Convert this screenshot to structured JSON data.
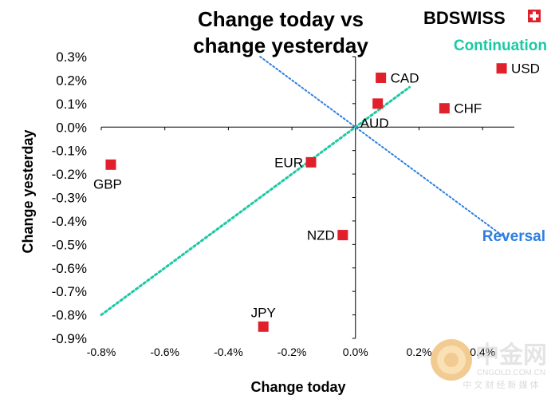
{
  "chart_data": {
    "type": "scatter",
    "title": [
      "Change today vs",
      "change yesterday"
    ],
    "xlabel": "Change today",
    "ylabel": "Change yesterday",
    "xlim": [
      -0.8,
      0.5
    ],
    "ylim": [
      -0.9,
      0.3
    ],
    "x_ticks": [
      {
        "value": -0.8,
        "label": "-0.8%"
      },
      {
        "value": -0.6,
        "label": "-0.6%"
      },
      {
        "value": -0.4,
        "label": "-0.4%"
      },
      {
        "value": -0.2,
        "label": "-0.2%"
      },
      {
        "value": 0.0,
        "label": "0.0%"
      },
      {
        "value": 0.2,
        "label": "0.2%"
      },
      {
        "value": 0.4,
        "label": "0.4%"
      }
    ],
    "y_ticks": [
      {
        "value": 0.3,
        "label": "0.3%"
      },
      {
        "value": 0.2,
        "label": "0.2%"
      },
      {
        "value": 0.1,
        "label": "0.1%"
      },
      {
        "value": 0.0,
        "label": "0.0%"
      },
      {
        "value": -0.1,
        "label": "-0.1%"
      },
      {
        "value": -0.2,
        "label": "-0.2%"
      },
      {
        "value": -0.3,
        "label": "-0.3%"
      },
      {
        "value": -0.4,
        "label": "-0.4%"
      },
      {
        "value": -0.5,
        "label": "-0.5%"
      },
      {
        "value": -0.6,
        "label": "-0.6%"
      },
      {
        "value": -0.7,
        "label": "-0.7%"
      },
      {
        "value": -0.8,
        "label": "-0.8%"
      },
      {
        "value": -0.9,
        "label": "-0.9%"
      }
    ],
    "points": [
      {
        "name": "USD",
        "x": 0.46,
        "y": 0.25,
        "label_pos": "right"
      },
      {
        "name": "CAD",
        "x": 0.08,
        "y": 0.21,
        "label_pos": "right"
      },
      {
        "name": "AUD",
        "x": 0.07,
        "y": 0.1,
        "label_pos": "below"
      },
      {
        "name": "CHF",
        "x": 0.28,
        "y": 0.08,
        "label_pos": "right"
      },
      {
        "name": "EUR",
        "x": -0.14,
        "y": -0.15,
        "label_pos": "left"
      },
      {
        "name": "GBP",
        "x": -0.77,
        "y": -0.16,
        "label_pos": "below"
      },
      {
        "name": "NZD",
        "x": -0.04,
        "y": -0.46,
        "label_pos": "left"
      },
      {
        "name": "JPY",
        "x": -0.29,
        "y": -0.85,
        "label_pos": "above"
      }
    ],
    "reference_lines": [
      {
        "name": "Continuation",
        "from": [
          -0.8,
          -0.8
        ],
        "to": [
          0.17,
          0.17
        ],
        "color": "#1bc9a4"
      },
      {
        "name": "Reversal",
        "from": [
          -0.3,
          0.3
        ],
        "to": [
          0.47,
          -0.47
        ],
        "color": "#2d7fe0"
      }
    ],
    "annotations": [
      {
        "text": "Continuation",
        "color": "#1bc9a4"
      },
      {
        "text": "Reversal",
        "color": "#2d7fe0"
      }
    ],
    "marker_color": "#e0202a",
    "grid": false
  },
  "brand": {
    "text": "BDSWISS",
    "color": "#e0202a"
  },
  "watermark": {
    "main": "中金网",
    "sub": "CNGOLD.COM.CN",
    "tagline": "中 文 财 经 新 媒 体"
  }
}
